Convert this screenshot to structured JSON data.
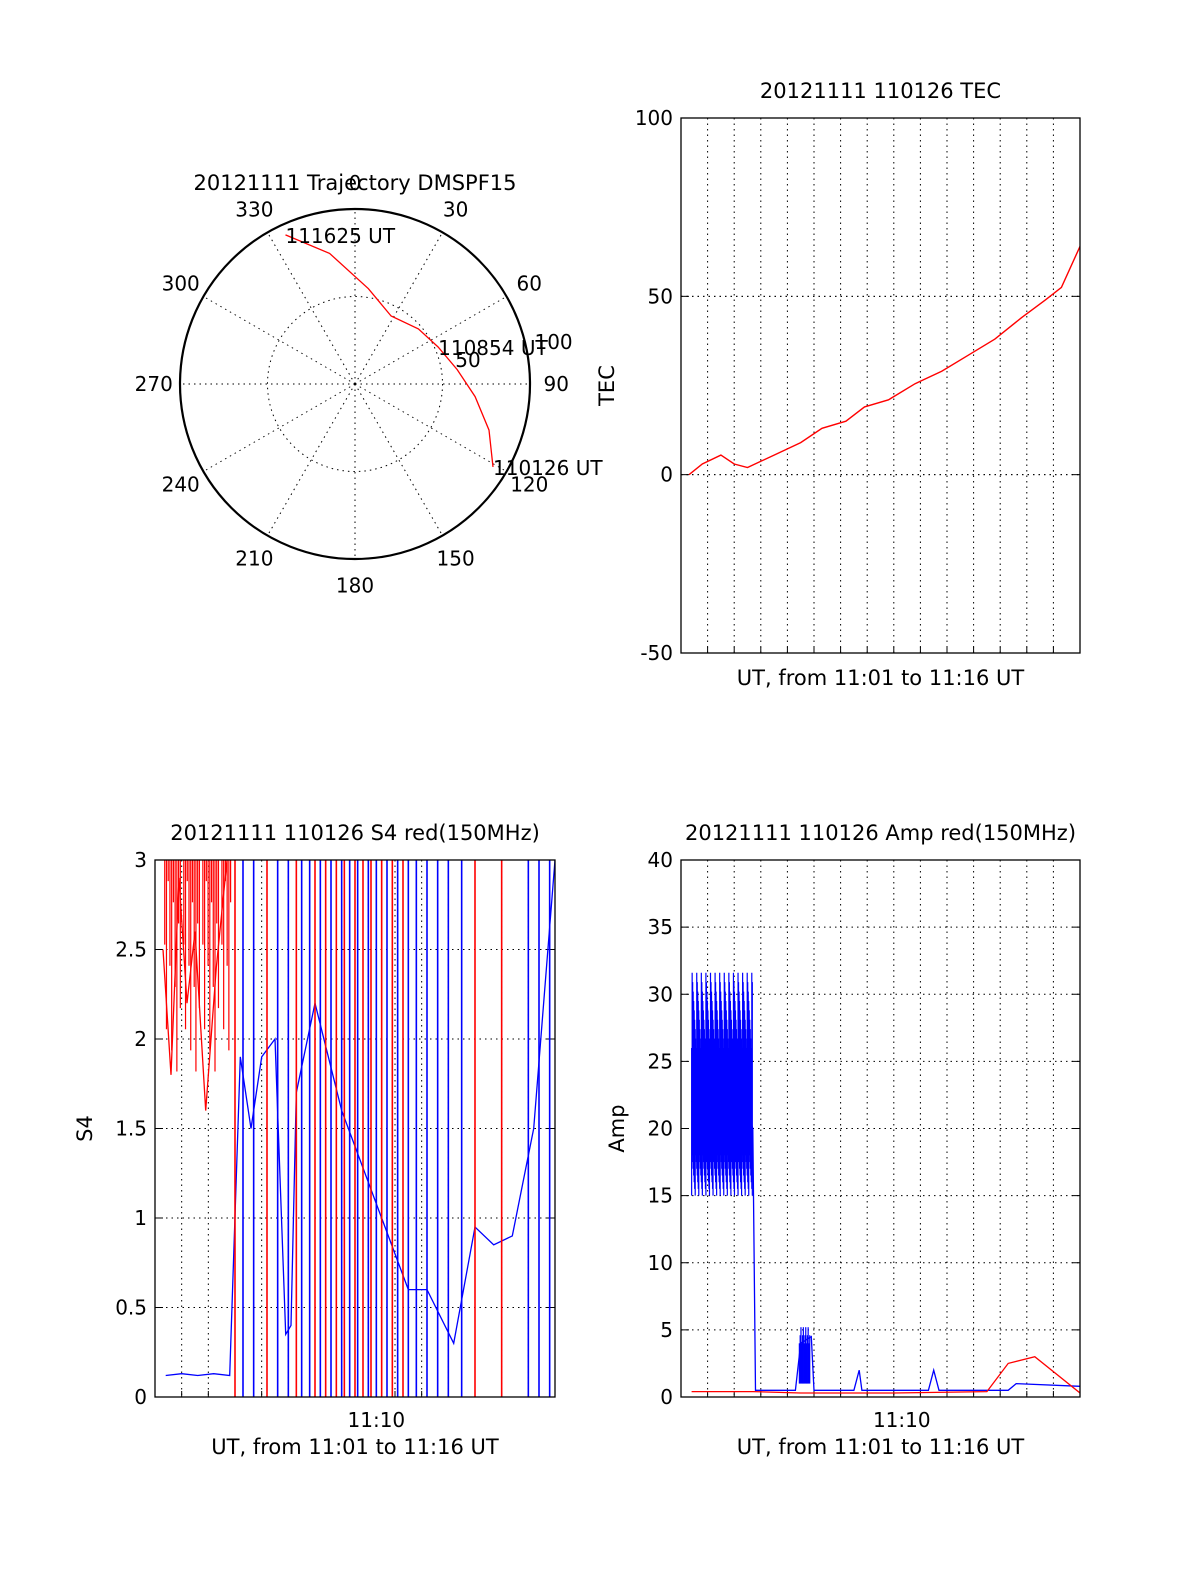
{
  "colors": {
    "red": "#ff0000",
    "blue": "#0000ff",
    "axes": "#000000",
    "background": "#ffffff"
  },
  "chart_data": [
    {
      "type": "polar",
      "title": "20121111 Trajectory DMSPF15",
      "angle_labels": [
        "0",
        "30",
        "60",
        "90",
        "120",
        "150",
        "180",
        "210",
        "240",
        "270",
        "300",
        "330"
      ],
      "radial_labels": [
        "50",
        "100"
      ],
      "radial_ticks": [
        50,
        100
      ],
      "direction": "clockwise, 0 at top",
      "series": [
        {
          "color": "red",
          "points": [
            {
              "azimuth": 121,
              "zenith": 92
            },
            {
              "azimuth": 109,
              "zenith": 81
            },
            {
              "azimuth": 96,
              "zenith": 69
            },
            {
              "azimuth": 82,
              "zenith": 59
            },
            {
              "azimuth": 66,
              "zenith": 52
            },
            {
              "azimuth": 49,
              "zenith": 48
            },
            {
              "azimuth": 28,
              "zenith": 44
            },
            {
              "azimuth": 8,
              "zenith": 55
            },
            {
              "azimuth": 349,
              "zenith": 76
            },
            {
              "azimuth": 335,
              "zenith": 94
            }
          ]
        }
      ],
      "annotations": [
        {
          "text": "111625 UT",
          "azimuth": 335,
          "zenith": 94
        },
        {
          "text": "110854 UT",
          "azimuth": 66,
          "zenith": 52
        },
        {
          "text": "110126 UT",
          "azimuth": 121,
          "zenith": 92
        }
      ]
    },
    {
      "type": "line",
      "title": "20121111 110126 TEC",
      "xlabel": "UT, from 11:01 to 11:16 UT",
      "ylabel": "TEC",
      "ylim": [
        -50,
        100
      ],
      "yticks": [
        "-50",
        "0",
        "50",
        "100"
      ],
      "xlim": [
        0,
        15
      ],
      "x_unit": "minutes after 11:01 UT",
      "x_gridlines": 15,
      "y_gridlines": [
        0,
        50
      ],
      "series": [
        {
          "color": "red",
          "points": [
            [
              0.3,
              0
            ],
            [
              0.8,
              3
            ],
            [
              1.5,
              5.5
            ],
            [
              2.0,
              3
            ],
            [
              2.5,
              2
            ],
            [
              3.5,
              5.5
            ],
            [
              4.5,
              9
            ],
            [
              5.3,
              13
            ],
            [
              6.2,
              15
            ],
            [
              6.9,
              19
            ],
            [
              7.8,
              21
            ],
            [
              8.8,
              25.5
            ],
            [
              9.8,
              29
            ],
            [
              10.8,
              33.5
            ],
            [
              11.8,
              38
            ],
            [
              12.8,
              44
            ],
            [
              13.7,
              49
            ],
            [
              14.3,
              52.5
            ],
            [
              15.0,
              64
            ]
          ]
        }
      ]
    },
    {
      "type": "line",
      "title": "20121111 110126 S4 red(150MHz)",
      "xlabel": "UT, from 11:01 to 11:16 UT",
      "ylabel": "S4",
      "ylim": [
        0,
        3
      ],
      "yticks": [
        "0",
        "0.5",
        "1",
        "1.5",
        "2",
        "2.5",
        "3"
      ],
      "xlim": [
        0,
        15
      ],
      "x_unit": "minutes after 11:01 UT",
      "xticks": [
        {
          "value": 8.3,
          "label": "11:10"
        }
      ],
      "series": [
        {
          "color": "red",
          "description_segments": "dense spikes near 3 from 0 to 2.8 min, spikes 2.8-9.5 min",
          "points": [
            [
              0.3,
              2.5
            ],
            [
              0.6,
              1.8
            ],
            [
              0.9,
              2.9
            ],
            [
              1.2,
              2.2
            ],
            [
              1.5,
              2.6
            ],
            [
              1.9,
              1.6
            ],
            [
              2.3,
              2.4
            ],
            [
              2.7,
              3.0
            ]
          ]
        },
        {
          "color": "blue",
          "points": [
            [
              0.4,
              0.12
            ],
            [
              1.0,
              0.13
            ],
            [
              1.6,
              0.12
            ],
            [
              2.2,
              0.13
            ],
            [
              2.8,
              0.12
            ],
            [
              3.2,
              1.9
            ],
            [
              3.6,
              1.5
            ],
            [
              4.0,
              1.9
            ],
            [
              4.5,
              2.0
            ],
            [
              4.9,
              0.35
            ],
            [
              5.1,
              0.4
            ],
            [
              5.3,
              1.7
            ],
            [
              6.0,
              2.2
            ],
            [
              7.0,
              1.6
            ],
            [
              8.0,
              1.2
            ],
            [
              9.5,
              0.6
            ],
            [
              10.2,
              0.6
            ],
            [
              11.2,
              0.3
            ],
            [
              12.0,
              0.95
            ],
            [
              12.7,
              0.85
            ],
            [
              13.4,
              0.9
            ],
            [
              14.2,
              1.5
            ],
            [
              15.0,
              3.0
            ]
          ]
        }
      ]
    },
    {
      "type": "line",
      "title": "20121111 110126 Amp red(150MHz)",
      "xlabel": "UT, from 11:01 to 11:16 UT",
      "ylabel": "Amp",
      "ylim": [
        0,
        40
      ],
      "yticks": [
        "0",
        "5",
        "10",
        "15",
        "20",
        "25",
        "30",
        "35",
        "40"
      ],
      "xlim": [
        0,
        15
      ],
      "x_unit": "minutes after 11:01 UT",
      "xticks": [
        {
          "value": 8.3,
          "label": "11:10"
        }
      ],
      "series": [
        {
          "color": "blue",
          "points": [
            [
              0.4,
              22
            ],
            [
              0.8,
              24
            ],
            [
              1.2,
              20
            ],
            [
              1.6,
              23
            ],
            [
              2.0,
              21
            ],
            [
              2.4,
              22
            ],
            [
              2.7,
              20
            ],
            [
              2.8,
              0.5
            ],
            [
              4.3,
              0.5
            ],
            [
              4.5,
              4.0
            ],
            [
              4.9,
              4.5
            ],
            [
              5.0,
              0.5
            ],
            [
              6.5,
              0.5
            ],
            [
              6.7,
              2.0
            ],
            [
              6.8,
              0.5
            ],
            [
              9.3,
              0.5
            ],
            [
              9.5,
              2.0
            ],
            [
              9.7,
              0.5
            ],
            [
              12.3,
              0.5
            ],
            [
              12.6,
              1.0
            ],
            [
              15.0,
              0.8
            ]
          ]
        },
        {
          "color": "red",
          "points": [
            [
              0.4,
              0.4
            ],
            [
              2.7,
              0.4
            ],
            [
              4.5,
              0.3
            ],
            [
              8.0,
              0.3
            ],
            [
              11.5,
              0.4
            ],
            [
              12.3,
              2.5
            ],
            [
              13.3,
              3.0
            ],
            [
              15.0,
              0.3
            ]
          ]
        }
      ]
    }
  ]
}
